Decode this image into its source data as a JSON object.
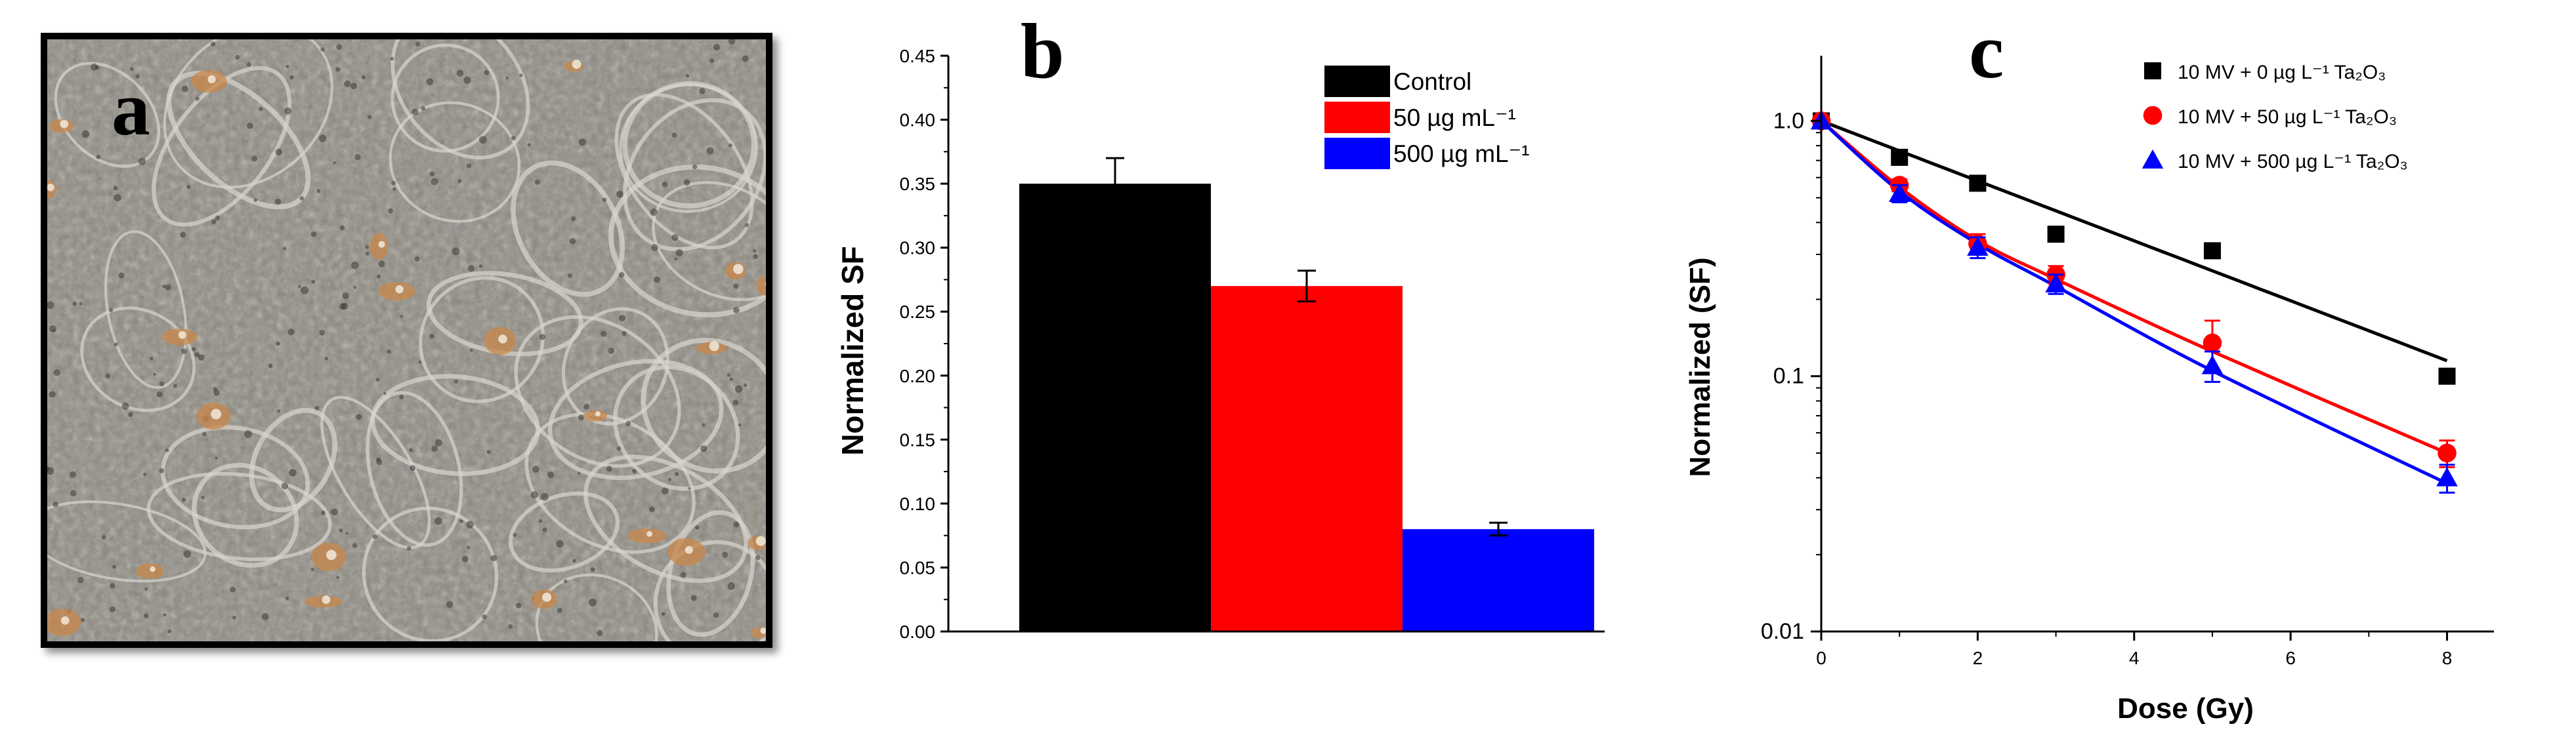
{
  "panel_a": {
    "letter": "a"
  },
  "colors": {
    "control": "#000000",
    "dose_50": "#ff0000",
    "dose_500": "#0000ff",
    "photo_base": "#8e8a80",
    "photo_cell_edge": "#d8d6cf",
    "photo_orange": "#c8874a"
  },
  "chart_data": [
    {
      "id": "b",
      "type": "bar",
      "panel_letter": "b",
      "ylabel": "Normalized SF",
      "xlabel": "",
      "ylim": [
        0,
        0.45
      ],
      "yticks": [
        "0.00",
        "0.05",
        "0.10",
        "0.15",
        "0.20",
        "0.25",
        "0.30",
        "0.35",
        "0.40",
        "0.45"
      ],
      "series": [
        {
          "name": "Control",
          "value": 0.35,
          "error": 0.02,
          "color": "#000000"
        },
        {
          "name": "50  µg mL⁻¹",
          "value": 0.27,
          "error": 0.012,
          "color": "#ff0000"
        },
        {
          "name": "500 µg mL⁻¹",
          "value": 0.08,
          "error": 0.005,
          "color": "#0000ff"
        }
      ]
    },
    {
      "id": "c",
      "type": "scatter",
      "panel_letter": "c",
      "xlabel": "Dose (Gy)",
      "ylabel": "Normalized (SF)",
      "xlim": [
        0,
        8.6
      ],
      "xticks": [
        "0",
        "2",
        "4",
        "6",
        "8"
      ],
      "yscale": "log",
      "ylim": [
        0.01,
        1.8
      ],
      "yticks": [
        "0.01",
        "0.1",
        "1.0"
      ],
      "series": [
        {
          "name": "10 MV + 0 µg L⁻¹ Ta₂O₃",
          "marker": "square",
          "color": "#000000",
          "x": [
            0,
            1,
            2,
            3,
            5,
            8
          ],
          "y": [
            1.0,
            0.72,
            0.57,
            0.36,
            0.31,
            0.1
          ],
          "err": [
            0,
            0,
            0,
            0,
            0,
            0
          ],
          "fit": [
            1.0,
            0.115
          ]
        },
        {
          "name": "10 MV + 50 µg L⁻¹ Ta₂O₃",
          "marker": "circle",
          "color": "#ff0000",
          "x": [
            0,
            1,
            2,
            3,
            5,
            8
          ],
          "y": [
            1.0,
            0.56,
            0.33,
            0.25,
            0.135,
            0.05
          ],
          "err": [
            0,
            0.03,
            0.03,
            0.02,
            0.03,
            0.006
          ],
          "fit": [
            1.0,
            0.55,
            0.34,
            0.24,
            0.125,
            0.05
          ]
        },
        {
          "name": "10 MV + 500 µg L⁻¹ Ta₂O₃",
          "marker": "triangle",
          "color": "#0000ff",
          "x": [
            0,
            1,
            2,
            3,
            5,
            8
          ],
          "y": [
            1.0,
            0.52,
            0.32,
            0.23,
            0.11,
            0.04
          ],
          "err": [
            0,
            0.04,
            0.03,
            0.02,
            0.015,
            0.005
          ],
          "fit": [
            1.0,
            0.53,
            0.33,
            0.225,
            0.105,
            0.038
          ]
        }
      ]
    }
  ]
}
